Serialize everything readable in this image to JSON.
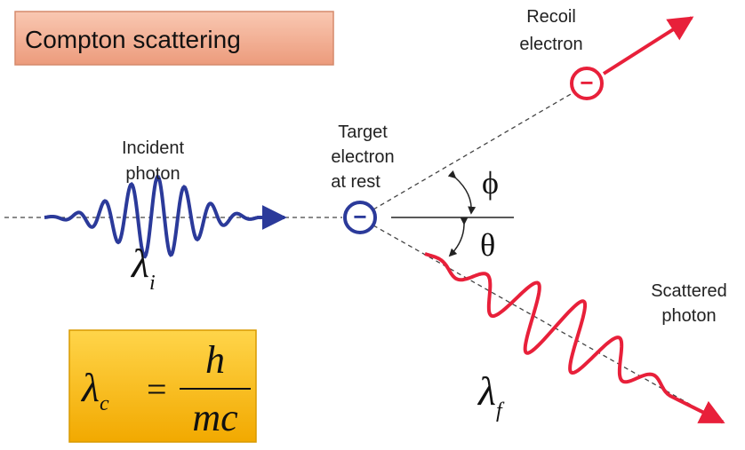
{
  "title": "Compton scattering",
  "labels": {
    "incident_photon": [
      "Incident",
      "photon"
    ],
    "target_electron": [
      "Target",
      "electron",
      "at rest"
    ],
    "recoil_electron": [
      "Recoil",
      "electron"
    ],
    "scattered_photon": [
      "Scattered",
      "photon"
    ],
    "electron_sign": "−",
    "phi": "ϕ",
    "theta": "θ",
    "lambda_i": {
      "symbol": "λ",
      "subscript": "i"
    },
    "lambda_f": {
      "symbol": "λ",
      "subscript": "f"
    }
  },
  "formula": {
    "symbol": "λ",
    "subscript": "c",
    "equals": "=",
    "numerator": "h",
    "denominator": "mc"
  }
}
